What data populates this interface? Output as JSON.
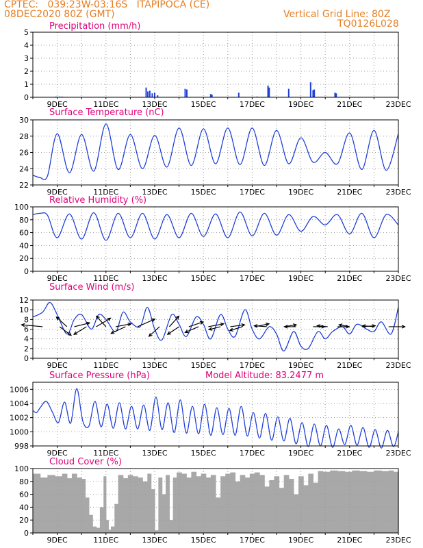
{
  "header": {
    "line1_left": "CPTEC:   039:23W-03:16S   ITAPIPOCA (CE)",
    "line2_left": "08DEC2020 80Z (GMT)",
    "line2_right": "Vertical Grid Line: 80Z",
    "line3_right": "TQ0126L028"
  },
  "colors": {
    "header": "#e67e22",
    "title": "#e0007a",
    "series": "#1f3fd8",
    "cloud": "#a8a8a8",
    "grid": "#9a9a9a"
  },
  "chart_data": [
    {
      "type": "bar",
      "title": "Precipitation  (mm/h)",
      "ylim": [
        0,
        5
      ],
      "yticks": [
        "0",
        "1",
        "2",
        "3",
        "4",
        "5"
      ],
      "xticks": [
        "9DEC",
        "11DEC",
        "13DEC",
        "15DEC",
        "17DEC",
        "19DEC",
        "21DEC",
        "23DEC"
      ],
      "x_days": [
        8.95,
        9.1,
        9.2,
        12.65,
        12.72,
        12.8,
        12.9,
        13.0,
        13.12,
        14.25,
        14.32,
        15.3,
        15.35,
        16.45,
        17.2,
        17.65,
        17.7,
        18.5,
        19.4,
        19.5,
        19.55,
        20.4,
        20.45
      ],
      "values": [
        0.05,
        0.05,
        0.05,
        0.75,
        0.45,
        0.5,
        0.3,
        0.35,
        0.15,
        0.65,
        0.6,
        0.25,
        0.2,
        0.35,
        0.05,
        0.9,
        0.75,
        0.65,
        1.15,
        0.55,
        0.6,
        0.35,
        0.3
      ]
    },
    {
      "type": "line",
      "title": "Surface Temperature  (nC)",
      "ylim": [
        22,
        30
      ],
      "yticks": [
        "22",
        "24",
        "26",
        "28",
        "30"
      ],
      "xticks": [
        "9DEC",
        "11DEC",
        "13DEC",
        "15DEC",
        "17DEC",
        "19DEC",
        "21DEC",
        "23DEC"
      ],
      "series": [
        {
          "x": [
            8.0,
            8.3,
            8.6,
            9.0,
            9.5,
            10.0,
            10.5,
            11.0,
            11.5,
            12.0,
            12.5,
            13.0,
            13.5,
            14.0,
            14.5,
            15.0,
            15.5,
            16.0,
            16.5,
            17.0,
            17.5,
            18.0,
            18.5,
            19.0,
            19.5,
            20.0,
            20.5,
            21.0,
            21.5,
            22.0,
            22.5,
            23.0
          ],
          "y": [
            23.2,
            22.9,
            23.1,
            28.3,
            23.5,
            28.2,
            23.7,
            29.5,
            23.9,
            28.2,
            24.0,
            28.1,
            24.2,
            29.0,
            24.4,
            28.9,
            24.6,
            29.0,
            24.5,
            29.0,
            24.4,
            28.7,
            24.6,
            27.8,
            24.8,
            26.0,
            24.6,
            28.4,
            23.9,
            28.7,
            23.8,
            28.3
          ]
        }
      ]
    },
    {
      "type": "line",
      "title": "Relative Humidity  (%)",
      "ylim": [
        0,
        100
      ],
      "yticks": [
        "0",
        "20",
        "40",
        "60",
        "80",
        "100"
      ],
      "xticks": [
        "9DEC",
        "11DEC",
        "13DEC",
        "15DEC",
        "17DEC",
        "19DEC",
        "21DEC",
        "23DEC"
      ],
      "series": [
        {
          "x": [
            8.0,
            8.3,
            8.6,
            9.0,
            9.5,
            10.0,
            10.5,
            11.0,
            11.5,
            12.0,
            12.5,
            13.0,
            13.5,
            14.0,
            14.5,
            15.0,
            15.5,
            16.0,
            16.5,
            17.0,
            17.5,
            18.0,
            18.5,
            19.0,
            19.5,
            20.0,
            20.5,
            21.0,
            21.5,
            22.0,
            22.5,
            23.0
          ],
          "y": [
            88,
            90,
            87,
            52,
            89,
            50,
            91,
            48,
            90,
            52,
            90,
            50,
            88,
            52,
            90,
            54,
            89,
            52,
            92,
            55,
            90,
            56,
            88,
            62,
            85,
            72,
            88,
            58,
            90,
            52,
            88,
            72
          ]
        }
      ]
    },
    {
      "type": "line",
      "title": "Surface Wind  (m/s)",
      "ylim": [
        0,
        12
      ],
      "yticks": [
        "0",
        "2",
        "4",
        "6",
        "8",
        "10",
        "12"
      ],
      "xticks": [
        "9DEC",
        "11DEC",
        "13DEC",
        "15DEC",
        "17DEC",
        "19DEC",
        "21DEC",
        "23DEC"
      ],
      "series": [
        {
          "x": [
            8.0,
            8.4,
            8.7,
            9.0,
            9.4,
            9.7,
            10.0,
            10.4,
            10.7,
            11.0,
            11.4,
            11.7,
            12.0,
            12.4,
            12.7,
            13.0,
            13.3,
            13.7,
            14.0,
            14.3,
            14.7,
            15.0,
            15.3,
            15.7,
            16.0,
            16.3,
            16.7,
            17.0,
            17.3,
            17.7,
            18.0,
            18.3,
            18.7,
            19.0,
            19.3,
            19.7,
            20.0,
            20.3,
            20.7,
            21.0,
            21.3,
            21.7,
            22.0,
            22.3,
            22.7,
            23.0
          ],
          "y": [
            8.5,
            9.5,
            11.5,
            9.0,
            5.0,
            8.0,
            9.0,
            6.0,
            9.0,
            8.0,
            5.5,
            9.5,
            7.5,
            6.5,
            10.5,
            6.0,
            3.8,
            9.0,
            7.0,
            4.5,
            8.5,
            7.0,
            4.0,
            9.0,
            6.0,
            4.5,
            10.0,
            6.0,
            4.0,
            6.5,
            5.0,
            1.5,
            5.5,
            2.5,
            2.0,
            5.5,
            4.0,
            5.5,
            6.5,
            5.0,
            7.0,
            6.0,
            5.5,
            7.5,
            5.0,
            10.5
          ]
        }
      ],
      "arrows": [
        {
          "x": 8.4,
          "u": -2.2,
          "v": 0.2
        },
        {
          "x": 9.1,
          "u": 1.2,
          "v": -0.9
        },
        {
          "x": 9.4,
          "u": -1.1,
          "v": 1.0
        },
        {
          "x": 9.7,
          "u": 1.6,
          "v": 0.4
        },
        {
          "x": 10.2,
          "u": -1.3,
          "v": -0.8
        },
        {
          "x": 10.6,
          "u": 1.5,
          "v": 0.9
        },
        {
          "x": 11.0,
          "u": -1.0,
          "v": 1.1
        },
        {
          "x": 11.4,
          "u": 1.6,
          "v": 0.3
        },
        {
          "x": 11.8,
          "u": -1.5,
          "v": -0.7
        },
        {
          "x": 12.3,
          "u": 1.8,
          "v": 0.8
        },
        {
          "x": 13.2,
          "u": -1.1,
          "v": -1.0
        },
        {
          "x": 13.6,
          "u": 1.0,
          "v": 1.1
        },
        {
          "x": 14.0,
          "u": -1.2,
          "v": -0.8
        },
        {
          "x": 14.4,
          "u": 1.5,
          "v": 0.5
        },
        {
          "x": 14.8,
          "u": -1.4,
          "v": -0.6
        },
        {
          "x": 15.2,
          "u": 1.6,
          "v": 0.3
        },
        {
          "x": 15.7,
          "u": -1.2,
          "v": -0.3
        },
        {
          "x": 16.1,
          "u": 1.5,
          "v": 0.2
        },
        {
          "x": 16.6,
          "u": -1.3,
          "v": -0.4
        },
        {
          "x": 17.1,
          "u": 1.5,
          "v": 0.3
        },
        {
          "x": 17.6,
          "u": -1.3,
          "v": 0.1
        },
        {
          "x": 18.3,
          "u": 1.3,
          "v": 0.2
        },
        {
          "x": 18.8,
          "u": -1.2,
          "v": 0.0
        },
        {
          "x": 19.5,
          "u": 1.2,
          "v": 0.0
        },
        {
          "x": 20.1,
          "u": -1.1,
          "v": 0.1
        },
        {
          "x": 20.5,
          "u": 1.2,
          "v": 0.0
        },
        {
          "x": 21.0,
          "u": -1.1,
          "v": 0.2
        },
        {
          "x": 21.5,
          "u": 1.4,
          "v": 0.1
        },
        {
          "x": 22.0,
          "u": -1.2,
          "v": 0.1
        },
        {
          "x": 22.6,
          "u": 1.7,
          "v": 0.0
        }
      ]
    },
    {
      "type": "line",
      "title": "Surface Pressure  (hPa)",
      "annotation": "Model Altitude: 83.2477  m",
      "ylim": [
        998,
        1007
      ],
      "yticks": [
        "998",
        "1000",
        "1002",
        "1004",
        "1006"
      ],
      "xticks": [
        "9DEC",
        "11DEC",
        "13DEC",
        "15DEC",
        "17DEC",
        "19DEC",
        "21DEC",
        "23DEC"
      ],
      "series": [
        {
          "x": [
            8.0,
            8.15,
            8.3,
            8.55,
            8.8,
            9.05,
            9.3,
            9.55,
            9.8,
            10.05,
            10.3,
            10.55,
            10.8,
            11.05,
            11.3,
            11.55,
            11.8,
            12.05,
            12.3,
            12.55,
            12.8,
            13.05,
            13.3,
            13.55,
            13.8,
            14.05,
            14.3,
            14.55,
            14.8,
            15.05,
            15.3,
            15.55,
            15.8,
            16.05,
            16.3,
            16.55,
            16.8,
            17.05,
            17.3,
            17.55,
            17.8,
            18.05,
            18.3,
            18.55,
            18.8,
            19.05,
            19.3,
            19.55,
            19.8,
            20.05,
            20.3,
            20.55,
            20.8,
            21.05,
            21.3,
            21.55,
            21.8,
            22.05,
            22.3,
            22.55,
            22.8,
            23.0
          ],
          "y": [
            1003.0,
            1002.7,
            1003.4,
            1004.3,
            1002.8,
            1001.3,
            1004.2,
            1001.2,
            1006.1,
            1001.5,
            1000.8,
            1004.3,
            1000.7,
            1003.9,
            1000.5,
            1004.1,
            1000.4,
            1003.6,
            1000.4,
            1003.8,
            1000.2,
            1004.9,
            1000.3,
            1004.1,
            999.9,
            1004.5,
            999.8,
            1003.6,
            999.7,
            1003.9,
            999.5,
            1003.4,
            999.6,
            1003.3,
            999.5,
            1003.6,
            999.4,
            1002.7,
            999.1,
            1002.6,
            998.8,
            1002.1,
            998.7,
            1001.9,
            998.3,
            1001.3,
            997.9,
            1001.1,
            998.0,
            1000.9,
            997.8,
            1000.4,
            998.2,
            1000.9,
            998.1,
            1000.6,
            997.8,
            1000.3,
            997.7,
            1000.2,
            997.9,
            1000.0
          ]
        }
      ]
    },
    {
      "type": "area",
      "title": "Cloud Cover  (%)",
      "ylim": [
        0,
        100
      ],
      "yticks": [
        "0",
        "20",
        "40",
        "60",
        "80",
        "100"
      ],
      "xticks": [
        "9DEC",
        "11DEC",
        "13DEC",
        "15DEC",
        "17DEC",
        "19DEC",
        "21DEC",
        "23DEC"
      ],
      "x": [
        8.0,
        8.3,
        8.6,
        8.9,
        9.2,
        9.4,
        9.6,
        9.8,
        10.0,
        10.15,
        10.3,
        10.45,
        10.6,
        10.75,
        10.9,
        11.0,
        11.1,
        11.2,
        11.35,
        11.5,
        11.7,
        11.9,
        12.1,
        12.3,
        12.5,
        12.7,
        12.85,
        13.0,
        13.15,
        13.3,
        13.45,
        13.6,
        13.75,
        13.9,
        14.1,
        14.3,
        14.5,
        14.7,
        14.9,
        15.1,
        15.3,
        15.5,
        15.7,
        15.9,
        16.1,
        16.3,
        16.5,
        16.7,
        16.9,
        17.1,
        17.3,
        17.5,
        17.7,
        17.9,
        18.1,
        18.3,
        18.5,
        18.7,
        18.9,
        19.1,
        19.3,
        19.5,
        19.7,
        19.9,
        20.2,
        20.5,
        20.8,
        21.1,
        21.4,
        21.7,
        22.0,
        22.3,
        22.6,
        22.8,
        23.0
      ],
      "y": [
        92,
        86,
        90,
        88,
        92,
        85,
        92,
        86,
        84,
        55,
        28,
        10,
        8,
        40,
        88,
        20,
        5,
        10,
        45,
        90,
        85,
        90,
        88,
        86,
        80,
        92,
        68,
        4,
        86,
        60,
        90,
        20,
        86,
        94,
        92,
        86,
        95,
        88,
        92,
        86,
        90,
        55,
        88,
        92,
        94,
        80,
        90,
        86,
        92,
        94,
        90,
        72,
        82,
        88,
        70,
        90,
        84,
        60,
        88,
        74,
        92,
        78,
        96,
        95,
        97,
        96,
        95,
        97,
        96,
        95,
        97,
        96,
        97,
        95,
        97
      ]
    }
  ]
}
